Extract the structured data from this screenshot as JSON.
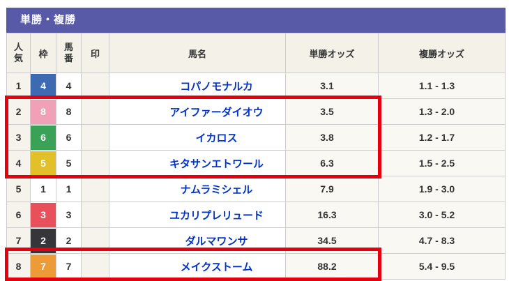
{
  "header": {
    "title": "単勝・複勝"
  },
  "columns": {
    "rank": "人気",
    "frame": "枠",
    "horse_number": "馬番",
    "mark": "印",
    "horse_name": "馬名",
    "win_odds": "単勝オッズ",
    "place_odds": "複勝オッズ"
  },
  "rows": [
    {
      "rank": "1",
      "frame": "4",
      "frame_bg": "#3d6ab1",
      "frame_fg": "#ffffff",
      "horse_number": "4",
      "mark": "",
      "name": "コパノモナルカ",
      "win": "3.1",
      "place": "1.1 - 1.3"
    },
    {
      "rank": "2",
      "frame": "8",
      "frame_bg": "#f0a1b8",
      "frame_fg": "#ffffff",
      "horse_number": "8",
      "mark": "",
      "name": "アイファーダイオウ",
      "win": "3.5",
      "place": "1.3 - 2.0"
    },
    {
      "rank": "3",
      "frame": "6",
      "frame_bg": "#39a257",
      "frame_fg": "#ffffff",
      "horse_number": "6",
      "mark": "",
      "name": "イカロス",
      "win": "3.8",
      "place": "1.2 - 1.7"
    },
    {
      "rank": "4",
      "frame": "5",
      "frame_bg": "#e2c029",
      "frame_fg": "#ffffff",
      "horse_number": "5",
      "mark": "",
      "name": "キタサンエトワール",
      "win": "6.3",
      "place": "1.5 - 2.5"
    },
    {
      "rank": "5",
      "frame": "1",
      "frame_bg": "#ffffff",
      "frame_fg": "#333333",
      "horse_number": "1",
      "mark": "",
      "name": "ナムラミシェル",
      "win": "7.9",
      "place": "1.9 - 3.0"
    },
    {
      "rank": "6",
      "frame": "3",
      "frame_bg": "#e8515c",
      "frame_fg": "#ffffff",
      "horse_number": "3",
      "mark": "",
      "name": "ユカリプレリュード",
      "win": "16.3",
      "place": "3.0 - 5.2"
    },
    {
      "rank": "7",
      "frame": "2",
      "frame_bg": "#35353a",
      "frame_fg": "#ffffff",
      "horse_number": "2",
      "mark": "",
      "name": "ダルマワンサ",
      "win": "34.5",
      "place": "4.7 - 8.3"
    },
    {
      "rank": "8",
      "frame": "7",
      "frame_bg": "#ec9b37",
      "frame_fg": "#ffffff",
      "horse_number": "7",
      "mark": "",
      "name": "メイクストーム",
      "win": "88.2",
      "place": "5.4 - 9.5"
    }
  ],
  "colors": {
    "title_bar": "#585aa8",
    "link_blue": "#0033cc",
    "highlight_red": "#e3000f"
  },
  "annotations": [
    {
      "note": "red highlight box around popularity ranks 2-4, spanning rank through win-odds columns"
    },
    {
      "note": "red highlight box around popularity rank 8, spanning rank through win-odds columns"
    }
  ]
}
